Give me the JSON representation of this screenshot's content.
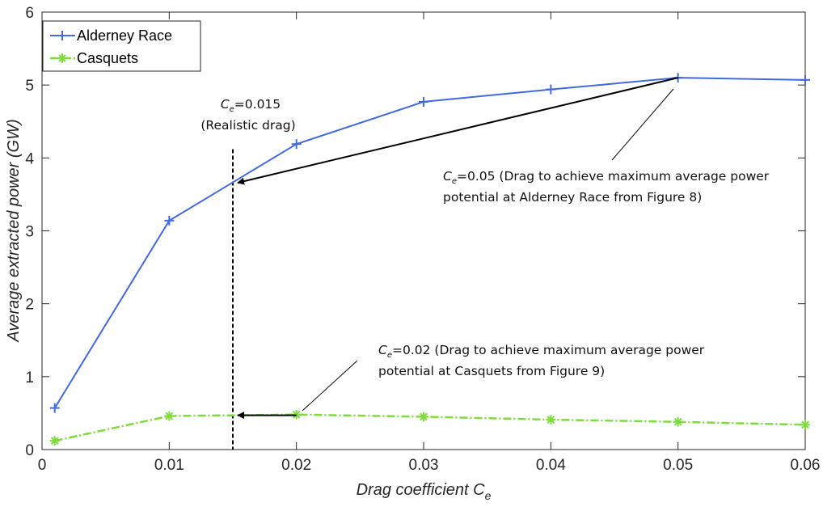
{
  "chart_data": {
    "type": "line",
    "xlabel": "Drag coefficient C",
    "xlabel_sub": "e",
    "ylabel": "Average extracted power (GW)",
    "xlim": [
      0,
      0.06
    ],
    "ylim": [
      0,
      6
    ],
    "x_ticks": [
      0,
      0.01,
      0.02,
      0.03,
      0.04,
      0.05,
      0.06
    ],
    "x_tick_labels": [
      "0",
      "0.01",
      "0.02",
      "0.03",
      "0.04",
      "0.05",
      "0.06"
    ],
    "y_ticks": [
      0,
      1,
      2,
      3,
      4,
      5,
      6
    ],
    "y_tick_labels": [
      "0",
      "1",
      "2",
      "3",
      "4",
      "5",
      "6"
    ],
    "grid": false,
    "legend_position": "top-left",
    "series": [
      {
        "name": "Alderney Race",
        "color": "#4169e1",
        "marker": "plus",
        "line_style": "solid",
        "x": [
          0.001,
          0.01,
          0.02,
          0.03,
          0.04,
          0.05,
          0.06
        ],
        "y": [
          0.57,
          3.14,
          4.19,
          4.77,
          4.94,
          5.1,
          5.07
        ]
      },
      {
        "name": "Casquets",
        "color": "#7ddc3c",
        "marker": "asterisk",
        "line_style": "dashdot",
        "x": [
          0.001,
          0.01,
          0.02,
          0.03,
          0.04,
          0.05,
          0.06
        ],
        "y": [
          0.12,
          0.46,
          0.48,
          0.45,
          0.41,
          0.38,
          0.34
        ]
      }
    ],
    "reference_line": {
      "x": 0.015,
      "style": "dashed",
      "color": "#000000"
    },
    "annotations": {
      "realistic": {
        "sym": "C",
        "sub": "e",
        "value": "=0.015",
        "line2": "(Realistic drag)"
      },
      "alderney": {
        "sym": "C",
        "sub": "e",
        "line1": "=0.05 (Drag to achieve maximum average power",
        "line2": "potential at Alderney Race from Figure 8)"
      },
      "casquets": {
        "sym": "C",
        "sub": "e",
        "line1": "=0.02 (Drag to achieve maximum average power",
        "line2": "potential at Casquets from Figure 9)"
      }
    },
    "arrows": [
      {
        "from": {
          "x": 0.05,
          "y": 5.1
        },
        "to": {
          "x": 0.015,
          "y": 3.66
        }
      },
      {
        "from": {
          "x": 0.02,
          "y": 0.47
        },
        "to": {
          "x": 0.015,
          "y": 0.47
        }
      }
    ]
  }
}
